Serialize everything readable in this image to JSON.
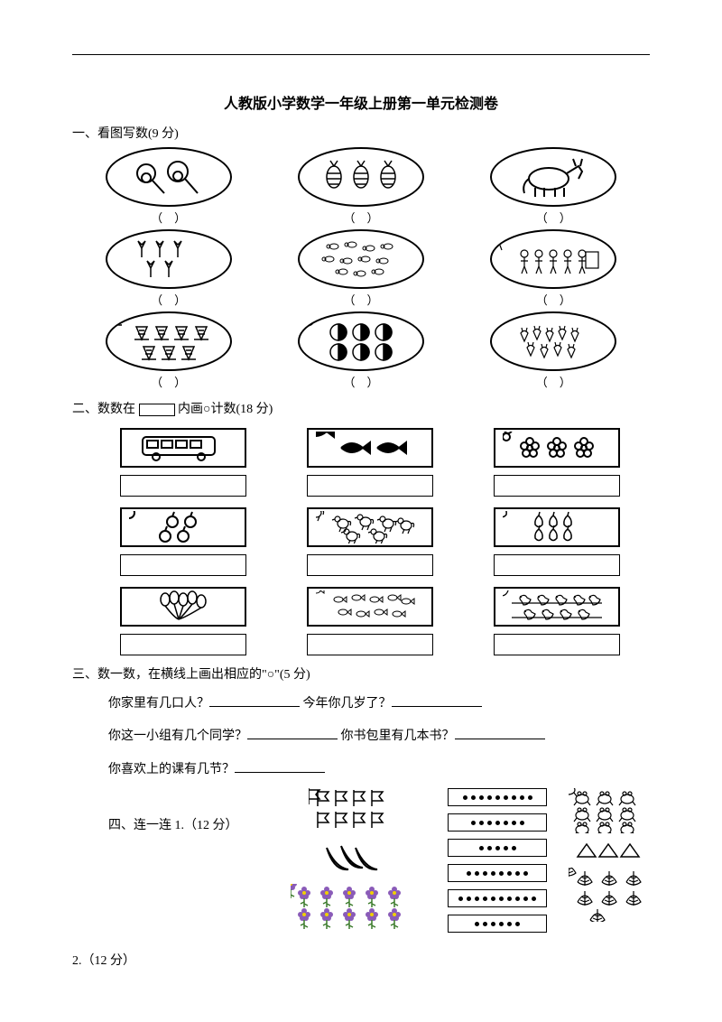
{
  "title": "人教版小学数学一年级上册第一单元检测卷",
  "sections": {
    "s1": {
      "head": "一、看图写数(9 分)",
      "paren": "（　）"
    },
    "s2": {
      "head_pre": "二、数数在",
      "head_post": " 内画○计数(18 分)"
    },
    "s3": {
      "head": "三、数一数，在横线上画出相应的\"○\"(5 分)",
      "q1a": "你家里有几口人？",
      "q1b": "今年你几岁了？",
      "q2a": "你这一小组有几个同学？",
      "q2b": "你书包里有几本书？",
      "q3a": "你喜欢上的课有几节？"
    },
    "s4": {
      "head": "四、连一连 1.（12 分）",
      "dotcounts": [
        9,
        7,
        5,
        8,
        10,
        6
      ]
    },
    "s5": {
      "head": "2.（12 分）"
    }
  },
  "colors": {
    "line": "#000000",
    "purple": "#8a5bb8",
    "green": "#3a7a2a"
  }
}
